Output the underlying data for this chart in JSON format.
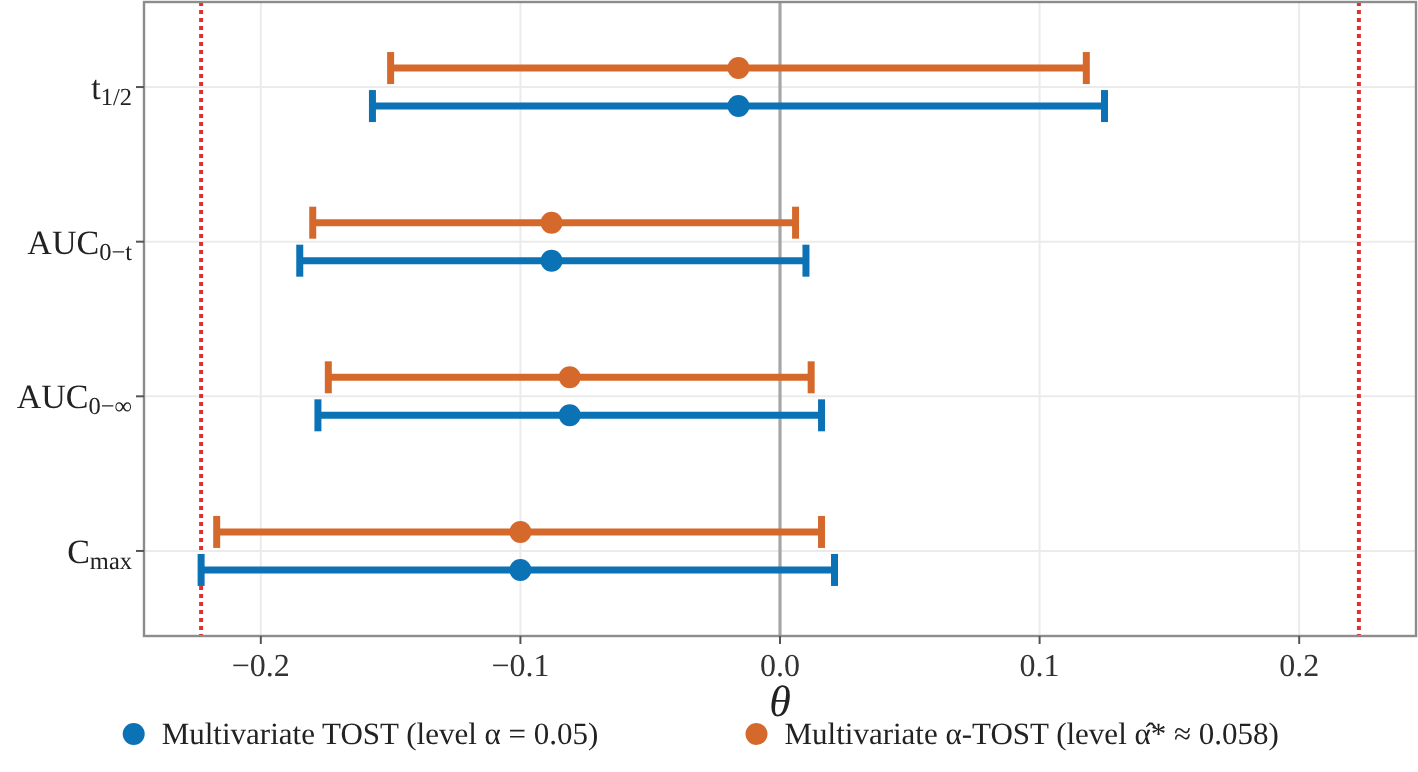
{
  "chart_data": {
    "type": "scatter",
    "orientation": "horizontal",
    "xlabel": "θ",
    "categories": [
      "t$_{1/2}$",
      "AUC$_{0−t}$",
      "AUC$_{0−∞}$",
      "C$_{max}$"
    ],
    "xlim": [
      -0.245,
      0.245
    ],
    "xticks": [
      {
        "value": -0.2,
        "label": "−0.2"
      },
      {
        "value": -0.1,
        "label": "−0.1"
      },
      {
        "value": 0,
        "label": "0.0"
      },
      0.1,
      0.2
    ],
    "grid": true,
    "legend": "bottom",
    "marker": "circle",
    "ref_lines": [
      {
        "axis": "x",
        "value": 0,
        "color": "#a6a6a6",
        "line_style": "solid"
      },
      {
        "axis": "x",
        "value": -0.223,
        "color": "#e0312c",
        "line_style": "dotted"
      },
      {
        "axis": "x",
        "value": 0.223,
        "color": "#e0312c",
        "line_style": "dotted"
      }
    ],
    "series": [
      {
        "name": "Multivariate α-TOST (level α̂* ≈ 0.058)",
        "color": "#d5692b",
        "values": [
          -0.016,
          -0.088,
          -0.081,
          -0.1
        ],
        "errors": [
          [
            -0.15,
            0.118
          ],
          [
            -0.18,
            0.006
          ],
          [
            -0.174,
            0.012
          ],
          [
            -0.217,
            0.016
          ]
        ]
      },
      {
        "name": "Multivariate TOST (level α = 0.05)",
        "color": "#0b72b5",
        "values": [
          -0.016,
          -0.088,
          -0.081,
          -0.1
        ],
        "errors": [
          [
            -0.157,
            0.125
          ],
          [
            -0.185,
            0.01
          ],
          [
            -0.178,
            0.016
          ],
          [
            -0.223,
            0.021
          ]
        ]
      }
    ]
  }
}
